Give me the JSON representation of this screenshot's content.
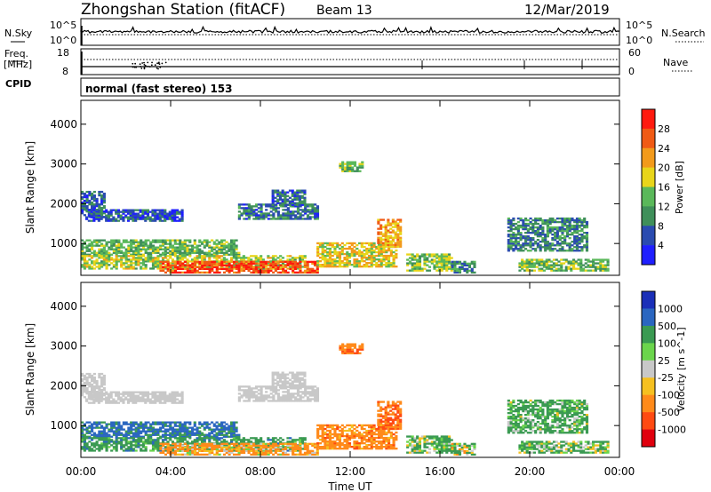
{
  "header": {
    "station": "Zhongshan Station (fitACF)",
    "beam": "Beam 13",
    "date": "12/Mar/2019"
  },
  "panel_labels": {
    "nsky": "N.Sky",
    "nsearch": "N.Search",
    "freq_line1": "Freq.",
    "freq_line2": "[MHz]",
    "cpid": "CPID",
    "nave": "Nave",
    "cpid_text": "normal (fast stereo) 153",
    "nsky_ticks": [
      "10^5",
      "10^0"
    ],
    "freq_ticks": [
      "18",
      "8"
    ],
    "nave_ticks": [
      "60",
      "0"
    ]
  },
  "colors": {
    "power": [
      "#1f1fff",
      "#2a4bb0",
      "#3f8f5a",
      "#5ab85a",
      "#e8d51a",
      "#f29a1b",
      "#f05a14",
      "#ff1a0f"
    ],
    "velocity": [
      "#e0000e",
      "#ff4a12",
      "#ff8a1a",
      "#f5c020",
      "#c8c8c8",
      "#6bd54c",
      "#3a9a52",
      "#2a66c0",
      "#1a2fb8"
    ],
    "ground_scatter": "#c8c8c8"
  },
  "chart_data": [
    {
      "type": "heatmap",
      "title": "",
      "xlabel": "Time UT",
      "ylabel": "Slant Range [km]",
      "xlim": [
        "00:00",
        "24:00"
      ],
      "ylim": [
        200,
        4600
      ],
      "x_ticks": [
        "00:00",
        "04:00",
        "08:00",
        "12:00",
        "16:00",
        "20:00",
        "00:00"
      ],
      "y_ticks": [
        "1000",
        "2000",
        "3000",
        "4000"
      ],
      "colorbar": {
        "label": "Power [dB]",
        "ticks": [
          "4",
          "8",
          "12",
          "16",
          "20",
          "24",
          "28"
        ],
        "range": [
          0,
          30
        ]
      },
      "regions": [
        {
          "t": [
            0.0,
            1.0
          ],
          "r": [
            1650,
            2300
          ],
          "v": 7
        },
        {
          "t": [
            0.2,
            4.5
          ],
          "r": [
            1550,
            1850
          ],
          "v": 6
        },
        {
          "t": [
            0.0,
            7.0
          ],
          "r": [
            700,
            1100
          ],
          "v": 13
        },
        {
          "t": [
            0.0,
            10.0
          ],
          "r": [
            350,
            700
          ],
          "v": 16
        },
        {
          "t": [
            3.5,
            10.5
          ],
          "r": [
            250,
            550
          ],
          "v": 27
        },
        {
          "t": [
            7.0,
            10.5
          ],
          "r": [
            1600,
            2000
          ],
          "v": 8
        },
        {
          "t": [
            8.5,
            10.0
          ],
          "r": [
            1950,
            2350
          ],
          "v": 7
        },
        {
          "t": [
            10.5,
            14.0
          ],
          "r": [
            400,
            1000
          ],
          "v": 19
        },
        {
          "t": [
            11.5,
            12.5
          ],
          "r": [
            2800,
            3050
          ],
          "v": 14
        },
        {
          "t": [
            13.2,
            14.2
          ],
          "r": [
            900,
            1600
          ],
          "v": 21
        },
        {
          "t": [
            14.5,
            16.5
          ],
          "r": [
            300,
            750
          ],
          "v": 15
        },
        {
          "t": [
            16.5,
            17.5
          ],
          "r": [
            250,
            550
          ],
          "v": 10
        },
        {
          "t": [
            19.0,
            22.5
          ],
          "r": [
            800,
            1650
          ],
          "v": 9
        },
        {
          "t": [
            19.5,
            23.5
          ],
          "r": [
            300,
            600
          ],
          "v": 14
        }
      ]
    },
    {
      "type": "heatmap",
      "title": "",
      "xlabel": "Time UT",
      "ylabel": "Slant Range [km]",
      "xlim": [
        "00:00",
        "24:00"
      ],
      "ylim": [
        200,
        4600
      ],
      "x_ticks": [
        "00:00",
        "04:00",
        "08:00",
        "12:00",
        "16:00",
        "20:00",
        "00:00"
      ],
      "y_ticks": [
        "1000",
        "2000",
        "3000",
        "4000"
      ],
      "colorbar": {
        "label": "Velocity [m s^-1]",
        "ticks": [
          "1000",
          "500",
          "100",
          "25",
          "-25",
          "-100",
          "-500",
          "-1000"
        ],
        "range": [
          -1200,
          1200
        ]
      },
      "regions": [
        {
          "t": [
            0.0,
            1.0
          ],
          "r": [
            1650,
            2300
          ],
          "v": 0
        },
        {
          "t": [
            0.2,
            4.5
          ],
          "r": [
            1550,
            1850
          ],
          "v": 0
        },
        {
          "t": [
            0.0,
            7.0
          ],
          "r": [
            700,
            1100
          ],
          "v": 600
        },
        {
          "t": [
            0.0,
            10.0
          ],
          "r": [
            350,
            700
          ],
          "v": 300
        },
        {
          "t": [
            3.5,
            10.5
          ],
          "r": [
            250,
            550
          ],
          "v": -200
        },
        {
          "t": [
            7.0,
            10.5
          ],
          "r": [
            1600,
            2000
          ],
          "v": 0
        },
        {
          "t": [
            8.5,
            10.0
          ],
          "r": [
            1950,
            2350
          ],
          "v": 0
        },
        {
          "t": [
            10.5,
            14.0
          ],
          "r": [
            400,
            1000
          ],
          "v": -300
        },
        {
          "t": [
            11.5,
            12.5
          ],
          "r": [
            2800,
            3050
          ],
          "v": -400
        },
        {
          "t": [
            13.2,
            14.2
          ],
          "r": [
            900,
            1600
          ],
          "v": -500
        },
        {
          "t": [
            14.5,
            16.5
          ],
          "r": [
            300,
            750
          ],
          "v": 150
        },
        {
          "t": [
            16.5,
            17.5
          ],
          "r": [
            250,
            550
          ],
          "v": 80
        },
        {
          "t": [
            19.0,
            22.5
          ],
          "r": [
            800,
            1650
          ],
          "v": 200
        },
        {
          "t": [
            19.5,
            23.5
          ],
          "r": [
            300,
            600
          ],
          "v": 150
        }
      ]
    }
  ]
}
